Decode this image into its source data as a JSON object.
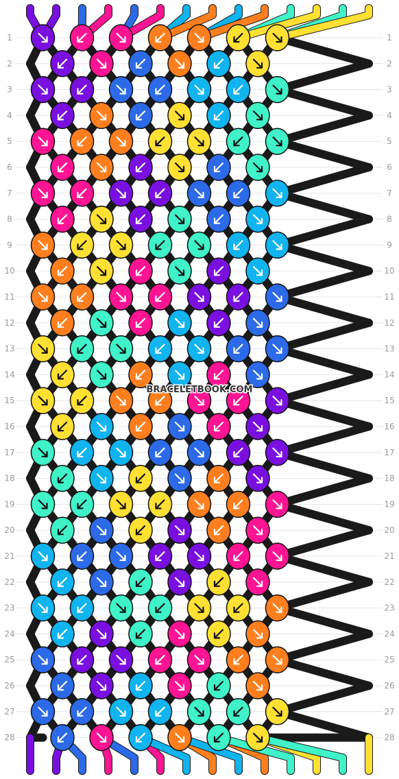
{
  "watermark": "BRACELETBOOK.COM",
  "strings_top": [
    "A",
    "A",
    "G",
    "B",
    "G",
    "B",
    "F",
    "C",
    "F",
    "C",
    "E",
    "D",
    "E",
    "D"
  ],
  "strings_bottom": [
    "A",
    "A",
    "G",
    "B",
    "G",
    "B",
    "F",
    "C",
    "F",
    "C",
    "E",
    "D",
    "E",
    "D"
  ],
  "colors": {
    "A": "#7a10e0",
    "B": "#ff1493",
    "C": "#ff7f1e",
    "D": "#ffe033",
    "E": "#40f2c8",
    "F": "#10b4ee",
    "G": "#2c6ae8"
  },
  "rows": [
    {
      "label": "1",
      "knots": [
        "A",
        "B",
        "B",
        "C",
        "C",
        "D",
        "D"
      ]
    },
    {
      "label": "2",
      "knots": [
        "A",
        "B",
        "G",
        "C",
        "F",
        "D"
      ]
    },
    {
      "label": "3",
      "knots": [
        "A",
        "A",
        "G",
        "G",
        "F",
        "F",
        "E"
      ]
    },
    {
      "label": "4",
      "knots": [
        "A",
        "C",
        "G",
        "D",
        "F",
        "E"
      ]
    },
    {
      "label": "5",
      "knots": [
        "B",
        "C",
        "C",
        "D",
        "D",
        "E",
        "E"
      ]
    },
    {
      "label": "6",
      "knots": [
        "B",
        "C",
        "A",
        "D",
        "G",
        "E"
      ]
    },
    {
      "label": "7",
      "knots": [
        "B",
        "B",
        "A",
        "A",
        "G",
        "G",
        "F"
      ]
    },
    {
      "label": "8",
      "knots": [
        "B",
        "D",
        "A",
        "E",
        "G",
        "F"
      ]
    },
    {
      "label": "9",
      "knots": [
        "C",
        "D",
        "D",
        "E",
        "E",
        "F",
        "F"
      ]
    },
    {
      "label": "10",
      "knots": [
        "C",
        "D",
        "B",
        "E",
        "A",
        "F"
      ]
    },
    {
      "label": "11",
      "knots": [
        "C",
        "C",
        "B",
        "B",
        "A",
        "A",
        "G"
      ]
    },
    {
      "label": "12",
      "knots": [
        "C",
        "E",
        "B",
        "F",
        "A",
        "G"
      ]
    },
    {
      "label": "13",
      "knots": [
        "D",
        "E",
        "E",
        "F",
        "F",
        "G",
        "G"
      ]
    },
    {
      "label": "14",
      "knots": [
        "D",
        "E",
        "C",
        "F",
        "B",
        "G"
      ]
    },
    {
      "label": "15",
      "knots": [
        "D",
        "D",
        "C",
        "C",
        "B",
        "B",
        "A"
      ]
    },
    {
      "label": "16",
      "knots": [
        "D",
        "F",
        "C",
        "G",
        "B",
        "A"
      ]
    },
    {
      "label": "17",
      "knots": [
        "E",
        "F",
        "F",
        "G",
        "G",
        "A",
        "A"
      ]
    },
    {
      "label": "18",
      "knots": [
        "E",
        "F",
        "D",
        "G",
        "C",
        "A"
      ]
    },
    {
      "label": "19",
      "knots": [
        "E",
        "E",
        "D",
        "D",
        "C",
        "C",
        "B"
      ]
    },
    {
      "label": "20",
      "knots": [
        "E",
        "G",
        "D",
        "A",
        "C",
        "B"
      ]
    },
    {
      "label": "21",
      "knots": [
        "F",
        "G",
        "G",
        "A",
        "A",
        "B",
        "B"
      ]
    },
    {
      "label": "22",
      "knots": [
        "F",
        "G",
        "E",
        "A",
        "D",
        "B"
      ]
    },
    {
      "label": "23",
      "knots": [
        "F",
        "F",
        "E",
        "E",
        "D",
        "D",
        "C"
      ]
    },
    {
      "label": "24",
      "knots": [
        "F",
        "A",
        "E",
        "B",
        "D",
        "C"
      ]
    },
    {
      "label": "25",
      "knots": [
        "G",
        "A",
        "A",
        "B",
        "B",
        "C",
        "C"
      ]
    },
    {
      "label": "26",
      "knots": [
        "G",
        "A",
        "F",
        "B",
        "E",
        "C"
      ]
    },
    {
      "label": "27",
      "knots": [
        "G",
        "G",
        "F",
        "F",
        "E",
        "E",
        "D"
      ]
    },
    {
      "label": "28",
      "knots": [
        "G",
        "B",
        "F",
        "C",
        "E",
        "D"
      ]
    }
  ]
}
